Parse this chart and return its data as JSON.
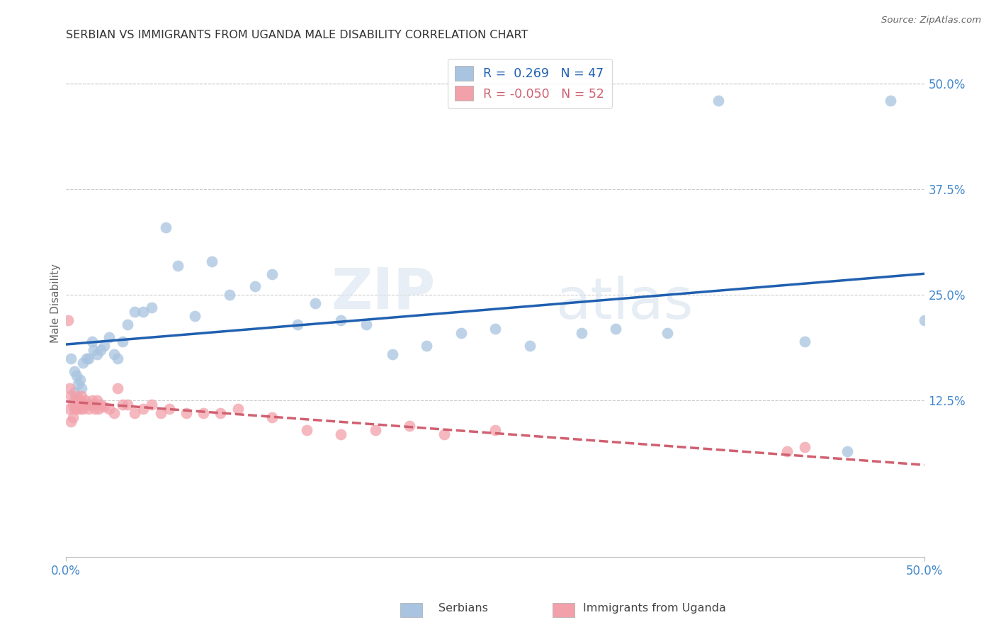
{
  "title": "SERBIAN VS IMMIGRANTS FROM UGANDA MALE DISABILITY CORRELATION CHART",
  "source": "Source: ZipAtlas.com",
  "ylabel": "Male Disability",
  "yticks": [
    "12.5%",
    "25.0%",
    "37.5%",
    "50.0%"
  ],
  "ytick_vals": [
    0.125,
    0.25,
    0.375,
    0.5
  ],
  "xmin": 0.0,
  "xmax": 0.5,
  "ymin": -0.06,
  "ymax": 0.54,
  "legend_r_serbian": " 0.269",
  "legend_n_serbian": "47",
  "legend_r_uganda": "-0.050",
  "legend_n_uganda": "52",
  "serbian_color": "#a8c4e0",
  "uganda_color": "#f2a0aa",
  "trend_serbian_color": "#2060b0",
  "trend_uganda_color": "#d06070",
  "watermark_zip": "ZIP",
  "watermark_atlas": "atlas",
  "background_color": "#ffffff",
  "grid_color": "#cccccc",
  "serbian_x": [
    0.003,
    0.005,
    0.005,
    0.006,
    0.007,
    0.008,
    0.009,
    0.01,
    0.012,
    0.013,
    0.015,
    0.016,
    0.018,
    0.02,
    0.022,
    0.025,
    0.028,
    0.03,
    0.033,
    0.036,
    0.04,
    0.045,
    0.05,
    0.058,
    0.065,
    0.075,
    0.085,
    0.095,
    0.11,
    0.12,
    0.135,
    0.145,
    0.16,
    0.175,
    0.19,
    0.21,
    0.23,
    0.25,
    0.27,
    0.3,
    0.32,
    0.35,
    0.38,
    0.43,
    0.455,
    0.48,
    0.5
  ],
  "serbian_y": [
    0.175,
    0.16,
    0.135,
    0.155,
    0.145,
    0.15,
    0.14,
    0.17,
    0.175,
    0.175,
    0.195,
    0.185,
    0.18,
    0.185,
    0.19,
    0.2,
    0.18,
    0.175,
    0.195,
    0.215,
    0.23,
    0.23,
    0.235,
    0.33,
    0.285,
    0.225,
    0.29,
    0.25,
    0.26,
    0.275,
    0.215,
    0.24,
    0.22,
    0.215,
    0.18,
    0.19,
    0.205,
    0.21,
    0.19,
    0.205,
    0.21,
    0.205,
    0.48,
    0.195,
    0.065,
    0.48,
    0.22
  ],
  "uganda_x": [
    0.001,
    0.002,
    0.002,
    0.003,
    0.003,
    0.004,
    0.004,
    0.005,
    0.005,
    0.006,
    0.006,
    0.007,
    0.007,
    0.008,
    0.008,
    0.009,
    0.009,
    0.01,
    0.011,
    0.012,
    0.013,
    0.014,
    0.015,
    0.016,
    0.017,
    0.018,
    0.019,
    0.02,
    0.022,
    0.025,
    0.028,
    0.03,
    0.033,
    0.036,
    0.04,
    0.045,
    0.05,
    0.055,
    0.06,
    0.07,
    0.08,
    0.09,
    0.1,
    0.12,
    0.14,
    0.16,
    0.18,
    0.2,
    0.22,
    0.25,
    0.42,
    0.43
  ],
  "uganda_y": [
    0.22,
    0.14,
    0.115,
    0.13,
    0.1,
    0.12,
    0.105,
    0.125,
    0.115,
    0.13,
    0.115,
    0.12,
    0.12,
    0.125,
    0.115,
    0.12,
    0.13,
    0.115,
    0.125,
    0.12,
    0.115,
    0.12,
    0.125,
    0.12,
    0.115,
    0.125,
    0.115,
    0.12,
    0.118,
    0.115,
    0.11,
    0.14,
    0.12,
    0.12,
    0.11,
    0.115,
    0.12,
    0.11,
    0.115,
    0.11,
    0.11,
    0.11,
    0.115,
    0.105,
    0.09,
    0.085,
    0.09,
    0.095,
    0.085,
    0.09,
    0.065,
    0.07
  ]
}
